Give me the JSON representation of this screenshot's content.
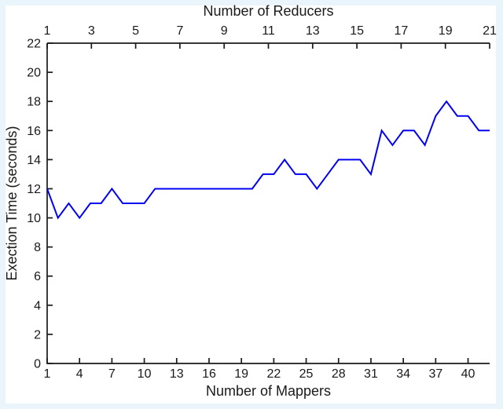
{
  "figure": {
    "background_outer": "#e9f5fa",
    "background_inner": "#ffffff"
  },
  "chart_data": {
    "type": "line",
    "title": "Number of Reducers",
    "xlabel": "Number of Mappers",
    "ylabel": "Exection Time (seconds)",
    "grid": false,
    "legend": null,
    "line_color": "#0202f2",
    "axis_color": "#1a1a1a",
    "top_axis": {
      "label": "Number of Reducers",
      "ticks": [
        1,
        3,
        5,
        7,
        9,
        11,
        13,
        15,
        17,
        19,
        21
      ],
      "range": [
        1,
        21
      ]
    },
    "bottom_axis": {
      "label": "Number of Mappers",
      "ticks": [
        1,
        4,
        7,
        10,
        13,
        16,
        19,
        22,
        25,
        28,
        31,
        34,
        37,
        40
      ],
      "range": [
        1,
        42
      ]
    },
    "y_axis": {
      "label": "Exection Time (seconds)",
      "ticks": [
        0,
        2,
        4,
        6,
        8,
        10,
        12,
        14,
        16,
        18,
        20,
        22
      ],
      "range": [
        0,
        22
      ]
    },
    "x": [
      1,
      2,
      3,
      4,
      5,
      6,
      7,
      8,
      9,
      10,
      11,
      12,
      13,
      14,
      15,
      16,
      17,
      18,
      19,
      20,
      21,
      22,
      23,
      24,
      25,
      26,
      27,
      28,
      29,
      30,
      31,
      32,
      33,
      34,
      35,
      36,
      37,
      38,
      39,
      40,
      41,
      42
    ],
    "series": [
      {
        "name": "execution-time",
        "values": [
          12,
          10,
          11,
          10,
          11,
          11,
          12,
          11,
          11,
          11,
          12,
          12,
          12,
          12,
          12,
          12,
          12,
          12,
          12,
          12,
          13,
          13,
          14,
          13,
          13,
          12,
          13,
          14,
          14,
          14,
          13,
          16,
          15,
          16,
          16,
          15,
          17,
          18,
          17,
          17,
          16,
          16
        ]
      }
    ]
  }
}
